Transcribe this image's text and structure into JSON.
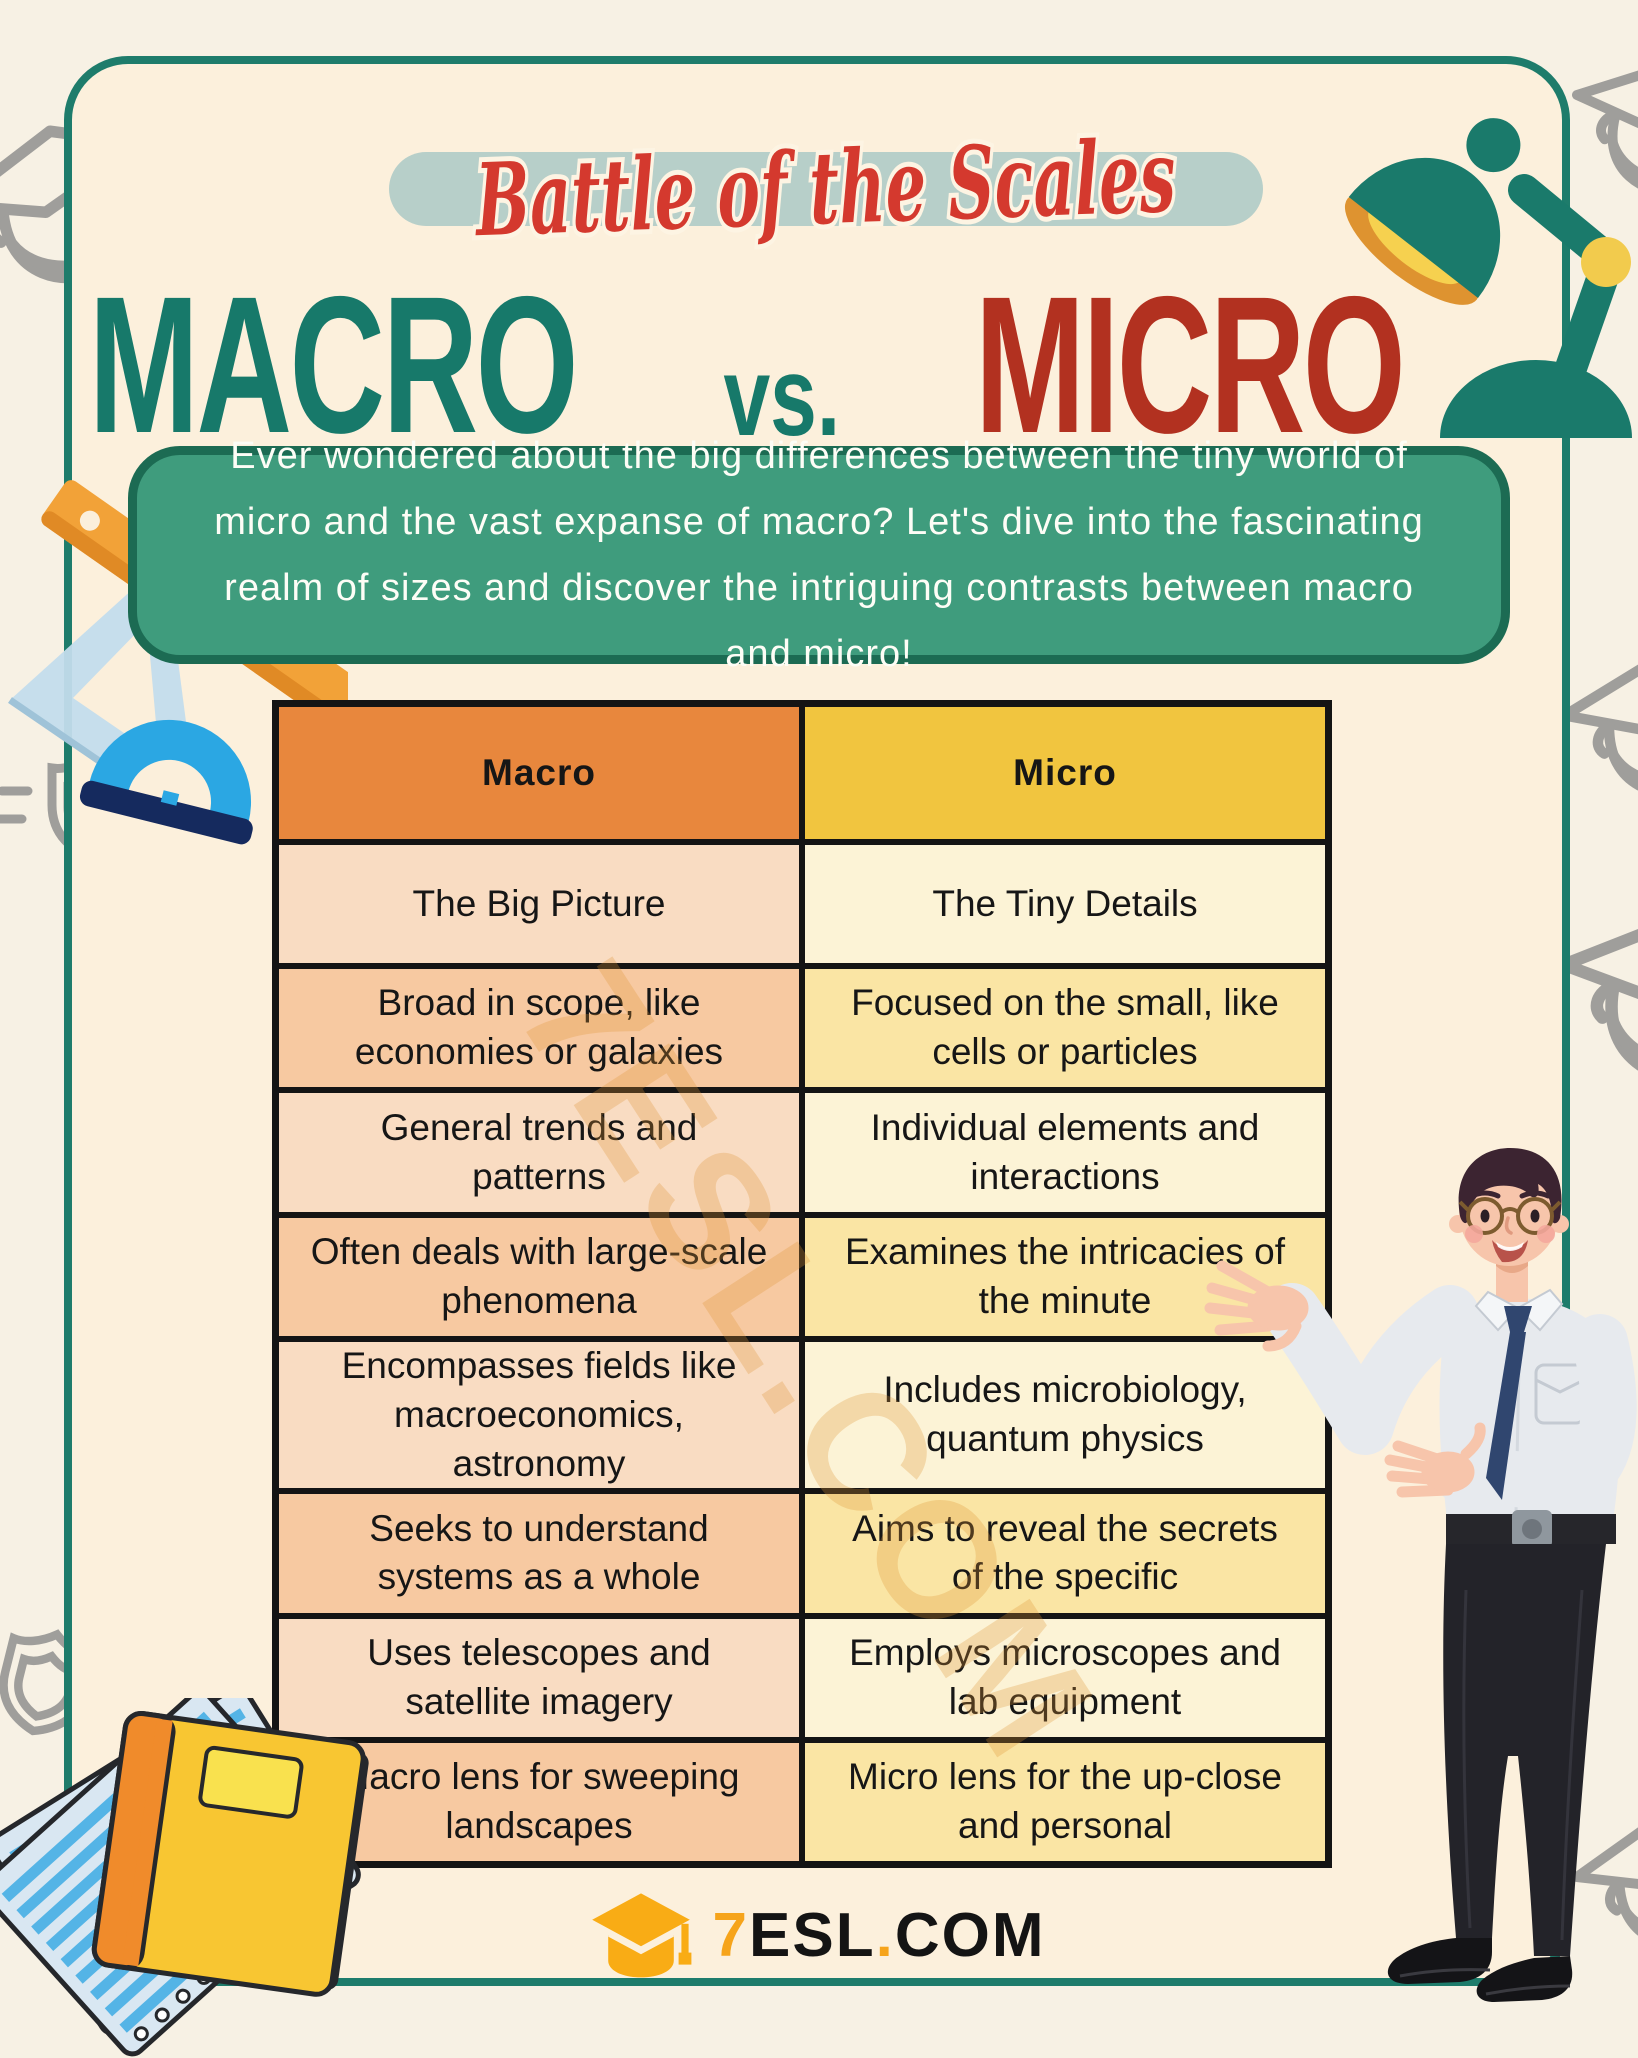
{
  "banner": {
    "title": "Battle of the Scales"
  },
  "heading": {
    "left": "MACRO",
    "vs": "vs.",
    "right": "MICRO"
  },
  "intro": "Ever wondered about the big differences between the tiny world of micro and the vast expanse of macro? Let's dive into the fascinating realm of sizes and discover the intriguing contrasts between macro and micro!",
  "table": {
    "headers": [
      "Macro",
      "Micro"
    ],
    "rows": [
      [
        "The Big Picture",
        "The Tiny Details"
      ],
      [
        "Broad in scope, like economies or galaxies",
        "Focused on the small, like cells or particles"
      ],
      [
        "General trends and patterns",
        "Individual elements and interactions"
      ],
      [
        "Often deals with large-scale phenomena",
        "Examines the intricacies of the minute"
      ],
      [
        "Encompasses fields like macroeconomics, astronomy",
        "Includes microbiology, quantum physics"
      ],
      [
        "Seeks to understand systems as a whole",
        "Aims to reveal the secrets of the specific"
      ],
      [
        "Uses telescopes and satellite imagery",
        "Employs microscopes and lab equipment"
      ],
      [
        "Macro lens for sweeping landscapes",
        "Micro lens for the up-close and personal"
      ]
    ]
  },
  "watermark": "7ESL.COM",
  "footer": {
    "seven": "7",
    "esl": "ESL",
    "dot": ".",
    "com": "COM"
  },
  "colors": {
    "card_border_teal": "#1E7C6B",
    "card_bg": "#FCF0DC",
    "outer_bg": "#F7F1E4",
    "banner_pill": "#B7CFC9",
    "script_red": "#D4392E",
    "macro_teal": "#17796A",
    "micro_red": "#B23120",
    "intro_green": "#3F9C7D",
    "intro_green_border": "#1C6B53",
    "macro_header": "#E8873D",
    "micro_header": "#F1C53F",
    "macro_row_light": "#F9DCC2",
    "macro_row_dark": "#F7C9A1",
    "micro_row_light": "#FCF3D6",
    "micro_row_dark": "#FAE5A4",
    "table_border": "#141414",
    "logo_orange": "#F6A41B"
  },
  "icons": {
    "logo": "graduation-cap-icon",
    "decorations": [
      "desk-lamp",
      "ruler",
      "set-square",
      "protractor",
      "notebook",
      "lined-paper",
      "graduation-cap-doodle",
      "shield-doodle"
    ],
    "figure": "teacher-presenting"
  }
}
